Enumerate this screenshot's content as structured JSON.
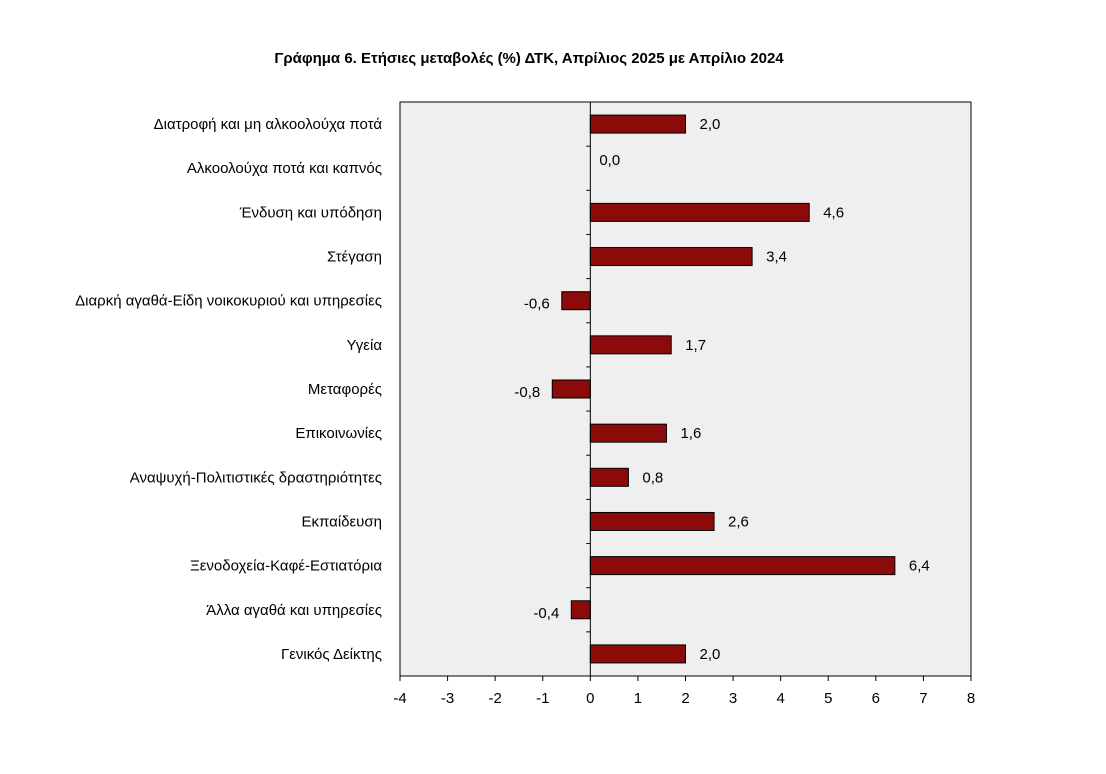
{
  "chart_data": {
    "type": "bar",
    "orientation": "horizontal",
    "title": "Γράφημα 6. Ετήσιες μεταβολές (%) ΔΤΚ, Απρίλιος 2025 με Απρίλιο 2024",
    "categories": [
      "Διατροφή και μη αλκοολούχα ποτά",
      "Αλκοολούχα ποτά και καπνός",
      "Ένδυση και υπόδηση",
      "Στέγαση",
      "Διαρκή αγαθά-Είδη νοικοκυριού και υπηρεσίες",
      "Υγεία",
      "Μεταφορές",
      "Επικοινωνίες",
      "Αναψυχή-Πολιτιστικές δραστηριότητες",
      "Εκπαίδευση",
      "Ξενοδοχεία-Καφέ-Εστιατόρια",
      "Άλλα αγαθά και υπηρεσίες",
      "Γενικός Δείκτης"
    ],
    "values": [
      2.0,
      0.0,
      4.6,
      3.4,
      -0.6,
      1.7,
      -0.8,
      1.6,
      0.8,
      2.6,
      6.4,
      -0.4,
      2.0
    ],
    "value_labels": [
      "2,0",
      "0,0",
      "4,6",
      "3,4",
      "-0,6",
      "1,7",
      "-0,8",
      "1,6",
      "0,8",
      "2,6",
      "6,4",
      "-0,4",
      "2,0"
    ],
    "xlim": [
      -4,
      8
    ],
    "xticks": [
      -4,
      -3,
      -2,
      -1,
      0,
      1,
      2,
      3,
      4,
      5,
      6,
      7,
      8
    ],
    "xlabel": "",
    "ylabel": "",
    "grid": false,
    "legend": "none",
    "colors": {
      "bar_fill": "#8B0A0A",
      "bar_stroke": "#000000",
      "plot_bg": "#EFEFEF",
      "axis": "#000000"
    }
  }
}
